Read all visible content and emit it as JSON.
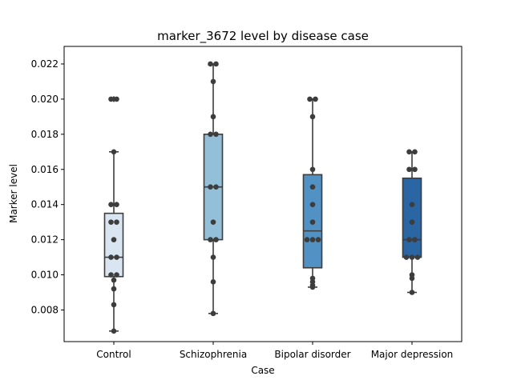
{
  "chart_data": {
    "type": "box",
    "title": "marker_3672 level by disease case",
    "xlabel": "Case",
    "ylabel": "Marker level",
    "ylim": [
      0.0062,
      0.023
    ],
    "yticks": [
      0.008,
      0.01,
      0.012,
      0.014,
      0.016,
      0.018,
      0.02,
      0.022
    ],
    "ytick_labels": [
      "0.008",
      "0.010",
      "0.012",
      "0.014",
      "0.016",
      "0.018",
      "0.020",
      "0.022"
    ],
    "grid": false,
    "categories": [
      "Control",
      "Schizophrenia",
      "Bipolar disorder",
      "Major depression"
    ],
    "colors": [
      "#d9e6f2",
      "#94bfd9",
      "#5291c4",
      "#2a65a4"
    ],
    "boxes": [
      {
        "q1": 0.0099,
        "median": 0.011,
        "q3": 0.0135,
        "whisker_low": 0.0068,
        "whisker_high": 0.017,
        "outliers": [
          0.02
        ]
      },
      {
        "q1": 0.012,
        "median": 0.015,
        "q3": 0.018,
        "whisker_low": 0.0078,
        "whisker_high": 0.022,
        "outliers": []
      },
      {
        "q1": 0.0104,
        "median": 0.0125,
        "q3": 0.0157,
        "whisker_low": 0.0093,
        "whisker_high": 0.02,
        "outliers": []
      },
      {
        "q1": 0.011,
        "median": 0.012,
        "q3": 0.0155,
        "whisker_low": 0.009,
        "whisker_high": 0.017,
        "outliers": []
      }
    ],
    "points": [
      [
        0.02,
        0.02,
        0.017,
        0.014,
        0.014,
        0.013,
        0.013,
        0.012,
        0.011,
        0.011,
        0.01,
        0.01,
        0.0097,
        0.0092,
        0.0083,
        0.0068
      ],
      [
        0.022,
        0.022,
        0.021,
        0.019,
        0.018,
        0.018,
        0.015,
        0.015,
        0.013,
        0.012,
        0.012,
        0.011,
        0.0096,
        0.0078
      ],
      [
        0.02,
        0.02,
        0.019,
        0.016,
        0.015,
        0.014,
        0.013,
        0.012,
        0.012,
        0.012,
        0.0098,
        0.0096,
        0.0094,
        0.0093
      ],
      [
        0.017,
        0.017,
        0.016,
        0.016,
        0.014,
        0.013,
        0.012,
        0.012,
        0.011,
        0.011,
        0.011,
        0.01,
        0.0098,
        0.009
      ]
    ]
  }
}
